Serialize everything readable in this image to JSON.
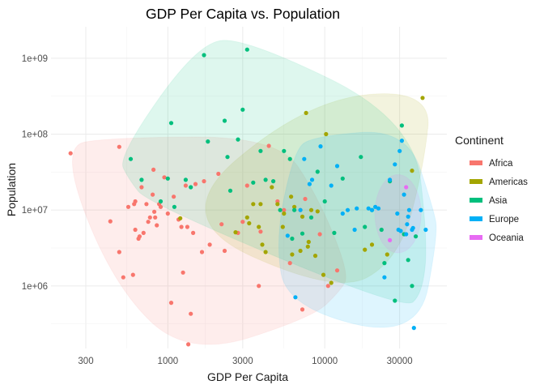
{
  "chart_data": {
    "type": "scatter",
    "title": "GDP Per Capita vs. Population",
    "xlabel": "GDP Per Capita",
    "ylabel": "Population",
    "x_scale": "log10",
    "y_scale": "log10",
    "xlim": [
      180,
      60000
    ],
    "ylim": [
      150000,
      2600000000
    ],
    "x_ticks": [
      300,
      1000,
      3000,
      10000,
      30000
    ],
    "x_tick_labels": [
      "300",
      "1000",
      "3000",
      "10000",
      "30000"
    ],
    "y_ticks": [
      1000000,
      10000000,
      100000000,
      1000000000
    ],
    "y_tick_labels": [
      "1e+06",
      "1e+07",
      "1e+08",
      "1e+09"
    ],
    "grid": true,
    "legend": {
      "title": "Continent",
      "position": "right"
    },
    "series": [
      {
        "name": "Africa",
        "color": "#F8766D",
        "points": [
          [
            240,
            56000000
          ],
          [
            430,
            7100000
          ],
          [
            490,
            68000000
          ],
          [
            490,
            2800000
          ],
          [
            520,
            1300000
          ],
          [
            560,
            11000000
          ],
          [
            600,
            1400000
          ],
          [
            610,
            12000000
          ],
          [
            620,
            13000000
          ],
          [
            620,
            5500000
          ],
          [
            650,
            4200000
          ],
          [
            660,
            4500000
          ],
          [
            680,
            20000000
          ],
          [
            700,
            5000000
          ],
          [
            730,
            12000000
          ],
          [
            750,
            7000000
          ],
          [
            770,
            8000000
          ],
          [
            800,
            16000000
          ],
          [
            810,
            34000000
          ],
          [
            820,
            9500000
          ],
          [
            830,
            8000000
          ],
          [
            850,
            6300000
          ],
          [
            880,
            12000000
          ],
          [
            900,
            11000000
          ],
          [
            950,
            27000000
          ],
          [
            1000,
            9000000
          ],
          [
            1050,
            600000
          ],
          [
            1090,
            15000000
          ],
          [
            1170,
            7500000
          ],
          [
            1220,
            6000000
          ],
          [
            1250,
            1500000
          ],
          [
            1300,
            21000000
          ],
          [
            1330,
            6000000
          ],
          [
            1350,
            170000
          ],
          [
            1400,
            430000
          ],
          [
            1450,
            5000000
          ],
          [
            1500,
            22000000
          ],
          [
            1650,
            2800000
          ],
          [
            1700,
            24000000
          ],
          [
            1850,
            3500000
          ],
          [
            2100,
            30000000
          ],
          [
            2200,
            6500000
          ],
          [
            2300,
            2900000
          ],
          [
            2800,
            5000000
          ],
          [
            3000,
            7000000
          ],
          [
            3200,
            21000000
          ],
          [
            3800,
            1000000
          ],
          [
            3900,
            5200000
          ],
          [
            4400,
            70000000
          ],
          [
            5000,
            13000000
          ],
          [
            5500,
            10000000
          ],
          [
            6000,
            2000000
          ],
          [
            7000,
            10000000
          ],
          [
            7200,
            490000
          ],
          [
            7500,
            14000000
          ],
          [
            9300,
            4800000
          ],
          [
            10500,
            1000000
          ],
          [
            12000,
            1600000
          ]
        ]
      },
      {
        "name": "Americas",
        "color": "#A3A500",
        "points": [
          [
            1200,
            7800000
          ],
          [
            2700,
            5100000
          ],
          [
            3200,
            8000000
          ],
          [
            3300,
            6700000
          ],
          [
            3500,
            12000000
          ],
          [
            3800,
            6000000
          ],
          [
            3900,
            12000000
          ],
          [
            4000,
            3500000
          ],
          [
            4200,
            2800000
          ],
          [
            4600,
            20000000
          ],
          [
            5000,
            12000000
          ],
          [
            5400,
            6000000
          ],
          [
            5500,
            9000000
          ],
          [
            6100,
            15000000
          ],
          [
            6200,
            2600000
          ],
          [
            6400,
            11000000
          ],
          [
            7000,
            2900000
          ],
          [
            7200,
            8200000
          ],
          [
            7600,
            190000000
          ],
          [
            7800,
            3300000
          ],
          [
            7900,
            3800000
          ],
          [
            8200,
            10000000
          ],
          [
            8700,
            2500000
          ],
          [
            9000,
            9600000
          ],
          [
            9800,
            1400000
          ],
          [
            10200,
            100000000
          ],
          [
            11000,
            1100000
          ],
          [
            18000,
            3000000
          ],
          [
            20000,
            3500000
          ],
          [
            25000,
            2600000
          ],
          [
            36000,
            33000000
          ],
          [
            42000,
            300000000
          ]
        ]
      },
      {
        "name": "Asia",
        "color": "#00BF7D",
        "points": [
          [
            580,
            47000000
          ],
          [
            680,
            25000000
          ],
          [
            900,
            13000000
          ],
          [
            1000,
            26000000
          ],
          [
            1050,
            140000000
          ],
          [
            1100,
            11000000
          ],
          [
            1300,
            25000000
          ],
          [
            1400,
            20000000
          ],
          [
            1700,
            1100000000
          ],
          [
            1800,
            80000000
          ],
          [
            2300,
            150000000
          ],
          [
            2400,
            50000000
          ],
          [
            2500,
            18000000
          ],
          [
            2800,
            85000000
          ],
          [
            3000,
            210000000
          ],
          [
            3200,
            1300000000
          ],
          [
            3500,
            23000000
          ],
          [
            3900,
            60000000
          ],
          [
            4200,
            25000000
          ],
          [
            4700,
            24000000
          ],
          [
            5200,
            10000000
          ],
          [
            5500,
            60000000
          ],
          [
            6000,
            47000000
          ],
          [
            6200,
            4200000
          ],
          [
            6400,
            10000000
          ],
          [
            7200,
            4900000
          ],
          [
            8200,
            8000000
          ],
          [
            9000,
            32000000
          ],
          [
            10000,
            13000000
          ],
          [
            11500,
            5000000
          ],
          [
            13000,
            26000000
          ],
          [
            17000,
            50000000
          ],
          [
            18000,
            6000000
          ],
          [
            20000,
            10000000
          ],
          [
            23000,
            5500000
          ],
          [
            24000,
            2000000
          ],
          [
            26000,
            24000000
          ],
          [
            28000,
            640000
          ],
          [
            31000,
            130000000
          ],
          [
            32000,
            4800000
          ],
          [
            34000,
            2200000
          ],
          [
            36000,
            1000000
          ],
          [
            38000,
            4500000
          ]
        ]
      },
      {
        "name": "Europe",
        "color": "#00B0F6",
        "points": [
          [
            5800,
            4600000
          ],
          [
            6500,
            710000
          ],
          [
            7000,
            10000000
          ],
          [
            7400,
            47000000
          ],
          [
            8000,
            22000000
          ],
          [
            8300,
            25000000
          ],
          [
            9400,
            69000000
          ],
          [
            11000,
            21000000
          ],
          [
            12000,
            38000000
          ],
          [
            13000,
            9000000
          ],
          [
            14000,
            10000000
          ],
          [
            15500,
            5500000
          ],
          [
            16000,
            10500000
          ],
          [
            19000,
            10500000
          ],
          [
            20000,
            10000000
          ],
          [
            21000,
            11000000
          ],
          [
            22000,
            10500000
          ],
          [
            24000,
            1300000
          ],
          [
            26000,
            25000000
          ],
          [
            28000,
            40000000
          ],
          [
            29000,
            9000000
          ],
          [
            29500,
            5500000
          ],
          [
            30000,
            60000000
          ],
          [
            30500,
            5300000
          ],
          [
            31000,
            82000000
          ],
          [
            32000,
            16000000
          ],
          [
            33000,
            4800000
          ],
          [
            33500,
            6500000
          ],
          [
            34000,
            8200000
          ],
          [
            34500,
            10000000
          ],
          [
            36000,
            5500000
          ],
          [
            36500,
            5800000
          ],
          [
            37000,
            280000
          ],
          [
            41000,
            10000000
          ],
          [
            44000,
            5500000
          ]
        ]
      },
      {
        "name": "Oceania",
        "color": "#E76BF3",
        "points": [
          [
            26000,
            4000000
          ],
          [
            33000,
            20000000
          ]
        ]
      }
    ]
  }
}
